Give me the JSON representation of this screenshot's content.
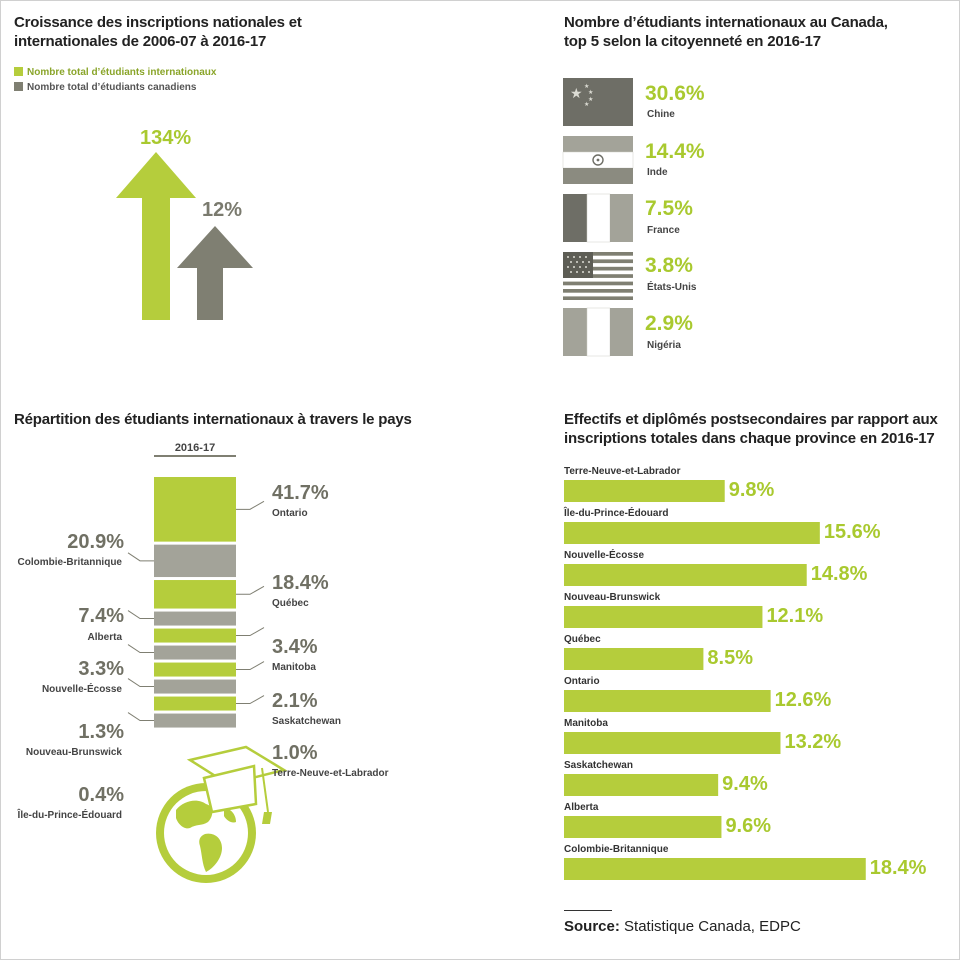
{
  "colors": {
    "green": "#b5cd3c",
    "grey": "#7f7f72",
    "lightgrey": "#a3a399",
    "textgreen": "#a9c92f",
    "textgrey": "#707064"
  },
  "growth": {
    "title_line1": "Croissance des inscriptions nationales et",
    "title_line2": "internationales de 2006-07 à 2016-17",
    "legend": [
      {
        "label": "Nombre total d’étudiants internationaux",
        "color": "#b5cd3c"
      },
      {
        "label": "Nombre total d’étudiants canadiens",
        "color": "#7f7f72"
      }
    ]
  },
  "countries": {
    "title_line1": "Nombre d’étudiants internationaux au Canada,",
    "title_line2": "top 5 selon la citoyenneté en 2016-17"
  },
  "distribution": {
    "title": "Répartition des étudiants internationaux à travers le pays",
    "year_label": "2016-17"
  },
  "provinces": {
    "title_line1": "Effectifs et diplômés postsecondaires par rapport aux",
    "title_line2": "inscriptions totales dans chaque province en 2016-17"
  },
  "source": {
    "label": "Source:",
    "text": " Statistique Canada, EDPC"
  },
  "chart_data": [
    {
      "type": "bar",
      "categories": [
        "Nombre total d’étudiants internationaux",
        "Nombre total d’étudiants canadiens"
      ],
      "values": [
        134,
        12
      ],
      "labels": [
        "134%",
        "12%"
      ]
    },
    {
      "type": "table",
      "categories": [
        "Chine",
        "Inde",
        "France",
        "États-Unis",
        "Nigéria"
      ],
      "values": [
        30.6,
        14.4,
        7.5,
        3.8,
        2.9
      ],
      "labels": [
        "30.6%",
        "14.4%",
        "7.5%",
        "3.8%",
        "2.9%"
      ],
      "flag_icons": [
        "china-flag-icon",
        "india-flag-icon",
        "france-flag-icon",
        "usa-flag-icon",
        "nigeria-flag-icon"
      ]
    },
    {
      "type": "bar",
      "categories": [
        "Ontario",
        "Colombie-Britannique",
        "Québec",
        "Alberta",
        "Manitoba",
        "Nouvelle-Écosse",
        "Saskatchewan",
        "Nouveau-Brunswick",
        "Terre-Neuve-et-Labrador",
        "Île-du-Prince-Édouard"
      ],
      "values": [
        41.7,
        20.9,
        18.4,
        7.4,
        3.4,
        3.3,
        2.1,
        1.3,
        1.0,
        0.4
      ],
      "labels": [
        "41.7%",
        "20.9%",
        "18.4%",
        "7.4%",
        "3.4%",
        "3.3%",
        "2.1%",
        "1.3%",
        "1.0%",
        "0.4%"
      ],
      "segment_colors": [
        "green",
        "grey",
        "green",
        "grey",
        "green",
        "grey",
        "green",
        "grey",
        "green",
        "grey"
      ]
    },
    {
      "type": "bar",
      "categories": [
        "Terre-Neuve-et-Labrador",
        "Île-du-Prince-Édouard",
        "Nouvelle-Écosse",
        "Nouveau-Brunswick",
        "Québec",
        "Ontario",
        "Manitoba",
        "Saskatchewan",
        "Alberta",
        "Colombie-Britannique"
      ],
      "values": [
        9.8,
        15.6,
        14.8,
        12.1,
        8.5,
        12.6,
        13.2,
        9.4,
        9.6,
        18.4
      ],
      "labels": [
        "9.8%",
        "15.6%",
        "14.8%",
        "12.1%",
        "8.5%",
        "12.6%",
        "13.2%",
        "9.4%",
        "9.6%",
        "18.4%"
      ]
    }
  ]
}
